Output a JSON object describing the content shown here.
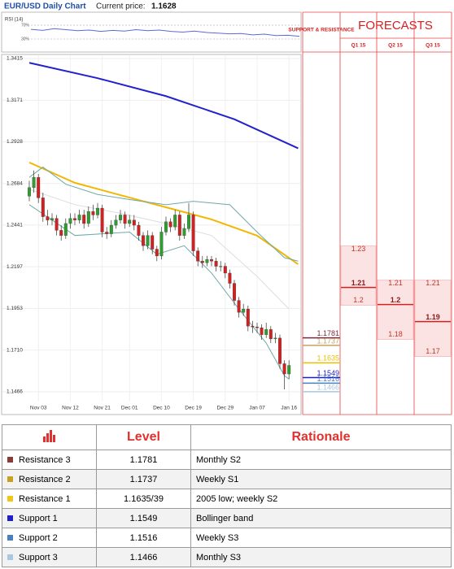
{
  "header": {
    "title": "EUR/USD Daily Chart",
    "price_label": "Current price:",
    "price": "1.1628"
  },
  "rsi": {
    "label": "RSI (14)",
    "ylim": [
      0,
      100
    ],
    "yticks": [
      {
        "value": 70,
        "label": "70%"
      },
      {
        "value": 30,
        "label": "30%"
      }
    ],
    "color": "#5b6bd6",
    "values": [
      58,
      55,
      60,
      57,
      54,
      56,
      52,
      55,
      53,
      57,
      54,
      56,
      52,
      50,
      53,
      49,
      47,
      45,
      46,
      42,
      44,
      40,
      41,
      38
    ]
  },
  "chart_data": {
    "type": "candlestick",
    "categories": [
      null,
      null,
      "Nov 03",
      null,
      null,
      null,
      null,
      null,
      null,
      "Nov 12",
      null,
      null,
      null,
      null,
      null,
      null,
      "Nov 21",
      null,
      null,
      null,
      null,
      null,
      "Dec 01",
      null,
      null,
      null,
      null,
      null,
      null,
      "Dec 10",
      null,
      null,
      null,
      null,
      null,
      null,
      "Dec 19",
      null,
      null,
      null,
      null,
      null,
      null,
      "Dec 29",
      null,
      null,
      null,
      null,
      null,
      null,
      "Jan 07",
      null,
      null,
      null,
      null,
      null,
      null,
      "Jan 16"
    ],
    "open": [
      1.261,
      1.266,
      1.272,
      1.26,
      1.249,
      1.247,
      1.248,
      1.241,
      1.238,
      1.245,
      1.248,
      1.247,
      1.25,
      1.245,
      1.252,
      1.25,
      1.254,
      1.24,
      1.239,
      1.244,
      1.247,
      1.25,
      1.245,
      1.247,
      1.244,
      1.238,
      1.232,
      1.238,
      1.23,
      1.226,
      1.24,
      1.246,
      1.243,
      1.25,
      1.238,
      1.242,
      1.25,
      1.229,
      1.223,
      1.222,
      1.224,
      1.223,
      1.22,
      1.22,
      1.216,
      1.21,
      1.2,
      1.193,
      1.195,
      1.185,
      1.1845,
      1.184,
      1.18,
      1.183,
      1.1775,
      1.178,
      1.163,
      1.157
    ],
    "high": [
      1.27,
      1.276,
      1.274,
      1.263,
      1.253,
      1.251,
      1.25,
      1.244,
      1.248,
      1.251,
      1.251,
      1.253,
      1.253,
      1.255,
      1.256,
      1.257,
      1.256,
      1.243,
      1.247,
      1.25,
      1.253,
      1.252,
      1.25,
      1.25,
      1.246,
      1.24,
      1.241,
      1.24,
      1.232,
      1.243,
      1.249,
      1.248,
      1.253,
      1.252,
      1.245,
      1.257,
      1.252,
      1.231,
      1.226,
      1.226,
      1.226,
      1.225,
      1.223,
      1.222,
      1.218,
      1.212,
      1.202,
      1.198,
      1.197,
      1.188,
      1.187,
      1.186,
      1.187,
      1.185,
      1.181,
      1.18,
      1.165,
      1.165
    ],
    "low": [
      1.258,
      1.263,
      1.257,
      1.246,
      1.244,
      1.244,
      1.238,
      1.235,
      1.236,
      1.242,
      1.244,
      1.245,
      1.242,
      1.243,
      1.247,
      1.248,
      1.237,
      1.236,
      1.237,
      1.242,
      1.245,
      1.242,
      1.243,
      1.241,
      1.235,
      1.229,
      1.23,
      1.227,
      1.223,
      1.224,
      1.238,
      1.24,
      1.241,
      1.235,
      1.236,
      1.24,
      1.226,
      1.22,
      1.219,
      1.22,
      1.22,
      1.217,
      1.217,
      1.213,
      1.207,
      1.197,
      1.19,
      1.191,
      1.182,
      1.181,
      1.181,
      1.177,
      1.178,
      1.175,
      1.175,
      1.16,
      1.148,
      1.154
    ],
    "close": [
      1.266,
      1.272,
      1.26,
      1.249,
      1.247,
      1.248,
      1.241,
      1.238,
      1.245,
      1.248,
      1.247,
      1.25,
      1.245,
      1.252,
      1.25,
      1.254,
      1.24,
      1.239,
      1.244,
      1.247,
      1.25,
      1.245,
      1.247,
      1.244,
      1.238,
      1.232,
      1.238,
      1.23,
      1.226,
      1.24,
      1.246,
      1.243,
      1.25,
      1.238,
      1.242,
      1.25,
      1.229,
      1.223,
      1.222,
      1.224,
      1.223,
      1.22,
      1.22,
      1.216,
      1.21,
      1.2,
      1.193,
      1.195,
      1.185,
      1.1845,
      1.184,
      1.18,
      1.183,
      1.1775,
      1.178,
      1.163,
      1.157,
      1.162
    ],
    "up_color": "#2e9e2e",
    "down_color": "#d42020",
    "lines": [
      {
        "color": "#2222cc",
        "width": 2,
        "x": [
          0,
          15,
          30,
          45,
          59
        ],
        "values": [
          1.339,
          1.33,
          1.3195,
          1.306,
          1.289
        ]
      },
      {
        "color": "#f2b705",
        "width": 2,
        "x": [
          0,
          10,
          20,
          30,
          40,
          50,
          59
        ],
        "values": [
          1.2807,
          1.2688,
          1.2616,
          1.2545,
          1.2474,
          1.2379,
          1.2212
        ]
      },
      {
        "color": "#6fa8a8",
        "width": 1,
        "x": [
          0,
          3,
          8,
          15,
          22,
          30,
          36,
          44,
          50,
          56,
          59
        ],
        "values": [
          1.272,
          1.278,
          1.268,
          1.262,
          1.259,
          1.256,
          1.258,
          1.256,
          1.24,
          1.225,
          1.223
        ]
      },
      {
        "color": "#6fa8a8",
        "width": 1,
        "x": [
          0,
          5,
          10,
          16,
          22,
          28,
          34,
          40,
          46,
          52,
          56,
          57
        ],
        "values": [
          1.256,
          1.247,
          1.238,
          1.239,
          1.24,
          1.227,
          1.232,
          1.216,
          1.195,
          1.175,
          1.156,
          1.154
        ]
      },
      {
        "color": "#dddddd",
        "width": 1,
        "x": [
          0,
          10,
          20,
          30,
          40,
          50,
          57
        ],
        "values": [
          1.265,
          1.256,
          1.251,
          1.245,
          1.238,
          1.214,
          1.195
        ]
      }
    ],
    "ylim": [
      1.1342,
      1.3434
    ],
    "yticks": [
      1.3415,
      1.3171,
      1.2928,
      1.2684,
      1.2441,
      1.2197,
      1.1953,
      {
        "value": 1.171,
        "label": "1.1710"
      },
      1.1466
    ],
    "grid": true,
    "levels": [
      {
        "value": 1.1781,
        "color": "#7b2b3b"
      },
      {
        "value": 1.1737,
        "color": "#c9a064"
      },
      {
        "value": 1.1635,
        "color": "#e8c000"
      },
      {
        "value": 1.1549,
        "color": "#1f1fcc"
      },
      {
        "value": 1.1516,
        "color": "#4a7fc0"
      },
      {
        "value": 1.1466,
        "color": "#a8c8e0"
      }
    ]
  },
  "forecasts": {
    "title": "FORECASTS",
    "sr_title": "SUPPORT & RESISTANCE",
    "quarters": [
      {
        "label": "Q1 15",
        "values": [
          1.23,
          1.21,
          1.2
        ]
      },
      {
        "label": "Q2 15",
        "values": [
          1.21,
          1.2,
          1.18
        ]
      },
      {
        "label": "Q3 15",
        "values": [
          1.21,
          1.19,
          1.17
        ]
      }
    ]
  },
  "table": {
    "header": [
      "Level",
      "Rationale"
    ],
    "rows": [
      {
        "name": "Resistance 3",
        "color": "#8b3a3a",
        "level": 1.1781,
        "rationale": "Monthly S2"
      },
      {
        "name": "Resistance 2",
        "color": "#c8a020",
        "level": 1.1737,
        "rationale": "Weekly S1"
      },
      {
        "name": "Resistance 1",
        "color": "#f0c419",
        "level": "1.1635/39",
        "rationale": "2005 low; weekly S2"
      },
      {
        "name": "Support 1",
        "color": "#1f1fcc",
        "level": 1.1549,
        "rationale": "Bollinger band"
      },
      {
        "name": "Support 2",
        "color": "#4a7fc0",
        "level": 1.1516,
        "rationale": "Weekly S3"
      },
      {
        "name": "Support 3",
        "color": "#a8c8e0",
        "level": 1.1466,
        "rationale": "Monthly S3"
      }
    ]
  }
}
